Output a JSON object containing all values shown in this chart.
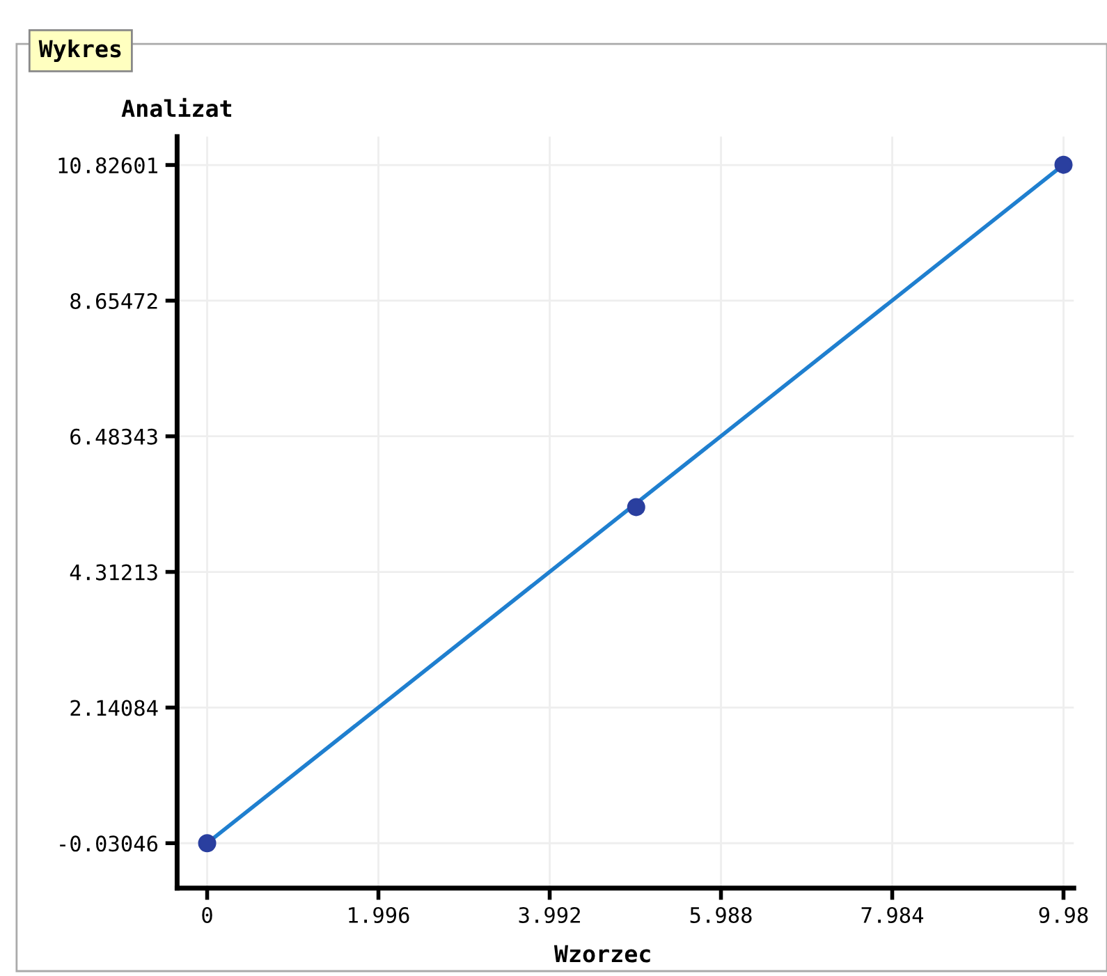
{
  "chart_data": {
    "type": "line",
    "title": "Wykres",
    "xlabel": "Wzorzec",
    "ylabel": "Analizat",
    "xlim": [
      -0.35,
      10.1
    ],
    "ylim": [
      -0.75,
      11.28
    ],
    "xticks": [
      0,
      1.996,
      3.992,
      5.988,
      7.984,
      9.98
    ],
    "yticks": [
      -0.03046,
      2.14084,
      4.31213,
      6.48343,
      8.65472,
      10.82601
    ],
    "grid": true,
    "series": [
      {
        "color": "#1f7fcf",
        "x": [
          0,
          9.98
        ],
        "values": [
          -0.03,
          10.83
        ]
      },
      {
        "type": "scatter",
        "color": "#2a3f9f",
        "marker": "circle",
        "x": [
          0,
          5.0,
          9.98
        ],
        "values": [
          -0.03,
          5.35,
          10.83
        ]
      }
    ]
  }
}
